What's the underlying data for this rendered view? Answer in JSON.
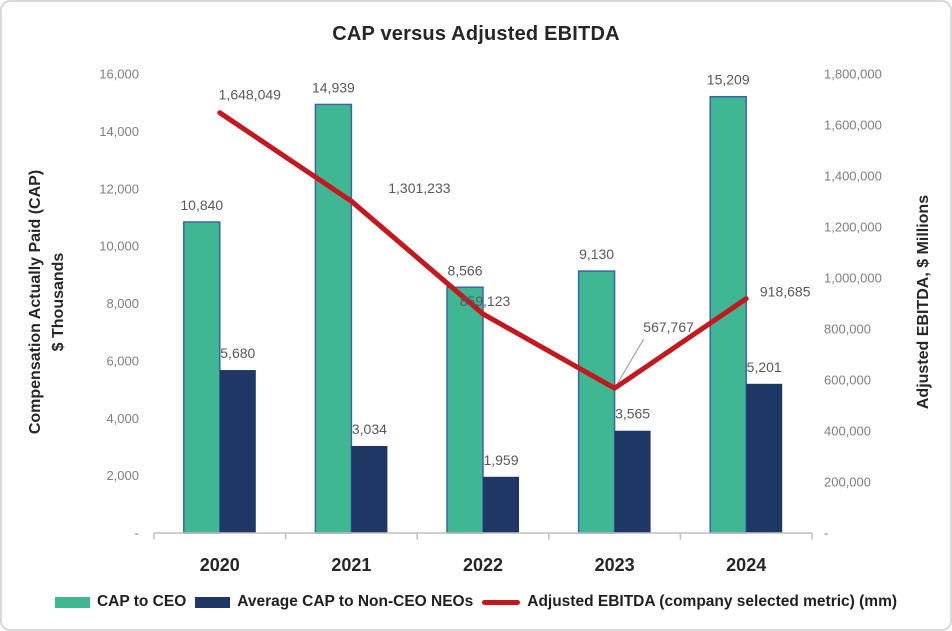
{
  "chart_data": {
    "type": "bar+line",
    "title": "CAP versus Adjusted EBITDA",
    "categories": [
      "2020",
      "2021",
      "2022",
      "2023",
      "2024"
    ],
    "series": [
      {
        "name": "CAP to CEO",
        "type": "bar",
        "axis": "left",
        "color": "#3FB792",
        "border_color": "#3A63AE",
        "values": [
          10840,
          14939,
          8566,
          9130,
          15209
        ],
        "labels": [
          "10,840",
          "14,939",
          "8,566",
          "9,130",
          "15,209"
        ]
      },
      {
        "name": "Average CAP to Non-CEO NEOs",
        "type": "bar",
        "axis": "left",
        "color": "#1E3765",
        "values": [
          5680,
          3034,
          1959,
          3565,
          5201
        ],
        "labels": [
          "5,680",
          "3,034",
          "1,959",
          "3,565",
          "5,201"
        ]
      },
      {
        "name": "Adjusted EBITDA (company selected metric) (mm)",
        "type": "line",
        "axis": "right",
        "color": "#C4171E",
        "values": [
          1648049,
          1301233,
          859123,
          567767,
          918685
        ],
        "labels": [
          "1,648,049",
          "1,301,233",
          "859,123",
          "567,767",
          "918,685"
        ]
      }
    ],
    "left_ylabel_line1": "Compensation Actually Paid (CAP)",
    "left_ylabel_line2": "$ Thousands",
    "right_ylabel": "Adjusted EBITDA, $ Millions",
    "left_ylim": [
      0,
      16000
    ],
    "right_ylim": [
      0,
      1800000
    ],
    "left_ticks": [
      "-",
      "2,000",
      "4,000",
      "6,000",
      "8,000",
      "10,000",
      "12,000",
      "14,000",
      "16,000"
    ],
    "right_ticks": [
      "-",
      "200,000",
      "400,000",
      "600,000",
      "800,000",
      "1,000,000",
      "1,200,000",
      "1,400,000",
      "1,600,000",
      "1,800,000"
    ],
    "grid": false,
    "legend_position": "bottom"
  },
  "colors": {
    "tick_label": "#7F7F7F",
    "data_label": "#595959",
    "axis_line": "#BFBFBF",
    "leader_line": "#A6A6A6",
    "dark_text": "#262626"
  }
}
